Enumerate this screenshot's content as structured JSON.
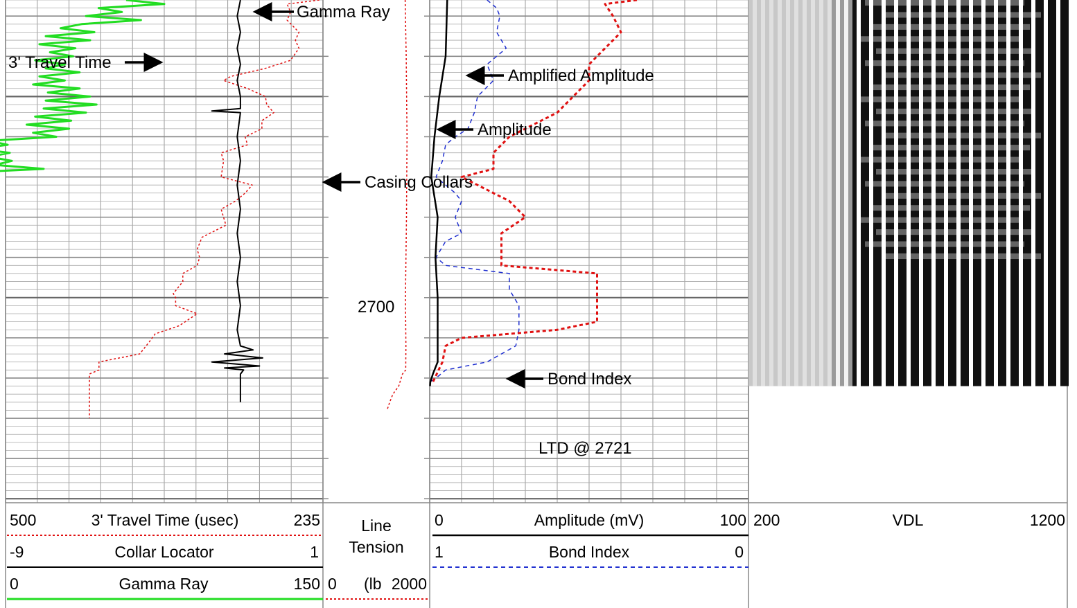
{
  "chart_data": {
    "type": "line",
    "title": "",
    "depth_range": [
      2626,
      2751
    ],
    "depth_labels": [
      {
        "depth": 2700,
        "text": "2700"
      }
    ],
    "remark": {
      "depth": 2721,
      "text": "LTD @ 2721"
    },
    "tracks": [
      {
        "id": "track1",
        "curves": [
          {
            "key": "tt",
            "name": "3' Travel Time (usec)",
            "min_label": "500",
            "max_label": "235",
            "range": [
              500,
              235
            ],
            "color": "#e01010",
            "dash": "3,3",
            "width": 1.5
          },
          {
            "key": "ccl",
            "name": "Collar Locator",
            "min_label": "-9",
            "max_label": "1",
            "range": [
              -9,
              1
            ],
            "color": "#000000",
            "dash": "",
            "width": 2
          },
          {
            "key": "gr",
            "name": "Gamma Ray",
            "min_label": "0",
            "max_label": "150",
            "range": [
              0,
              150
            ],
            "color": "#22dd22",
            "dash": "",
            "width": 3
          }
        ]
      },
      {
        "id": "depth",
        "curves": [
          {
            "key": "lt",
            "name": "Line Tension",
            "name_line1": "Line",
            "name_line2": "Tension",
            "unit": "(lb",
            "min_label": "0",
            "max_label": "2000",
            "range": [
              0,
              2000
            ],
            "color": "#e01010",
            "dash": "3,3",
            "width": 1.5
          }
        ]
      },
      {
        "id": "track2",
        "curves": [
          {
            "key": "amp",
            "name": "Amplitude (mV)",
            "min_label": "0",
            "max_label": "100",
            "range": [
              0,
              100
            ],
            "color": "#000000",
            "dash": "",
            "width": 2.5
          },
          {
            "key": "ampx",
            "name": "Amplified Amplitude",
            "range": [
              0,
              20
            ],
            "color": "#e01010",
            "dash": "5,4",
            "width": 3
          },
          {
            "key": "bi",
            "name": "Bond Index",
            "min_label": "1",
            "max_label": "0",
            "range": [
              1,
              0
            ],
            "color": "#2030d0",
            "dash": "6,5",
            "width": 1.5
          }
        ]
      },
      {
        "id": "track3",
        "curves": [
          {
            "key": "vdl",
            "name": "VDL",
            "min_label": "200",
            "max_label": "1200",
            "range": [
              200,
              1200
            ]
          }
        ]
      }
    ],
    "series": {
      "tt": [
        [
          2626,
          238
        ],
        [
          2627,
          265
        ],
        [
          2629,
          262
        ],
        [
          2631,
          265
        ],
        [
          2634,
          255
        ],
        [
          2636,
          258
        ],
        [
          2638,
          255
        ],
        [
          2641,
          262
        ],
        [
          2643,
          283
        ],
        [
          2645,
          312
        ],
        [
          2646,
          318
        ],
        [
          2648,
          298
        ],
        [
          2650,
          283
        ],
        [
          2652,
          282
        ],
        [
          2654,
          276
        ],
        [
          2656,
          286
        ],
        [
          2658,
          286
        ],
        [
          2660,
          300
        ],
        [
          2662,
          298
        ],
        [
          2664,
          320
        ],
        [
          2666,
          318
        ],
        [
          2670,
          320
        ],
        [
          2672,
          294
        ],
        [
          2674,
          300
        ],
        [
          2676,
          308
        ],
        [
          2678,
          320
        ],
        [
          2682,
          316
        ],
        [
          2685,
          336
        ],
        [
          2688,
          340
        ],
        [
          2690,
          338
        ],
        [
          2692,
          340
        ],
        [
          2694,
          352
        ],
        [
          2696,
          352
        ],
        [
          2699,
          360
        ],
        [
          2700,
          358
        ],
        [
          2702,
          358
        ],
        [
          2704,
          340
        ],
        [
          2707,
          355
        ],
        [
          2709,
          375
        ],
        [
          2711,
          380
        ],
        [
          2714,
          388
        ],
        [
          2716,
          422
        ],
        [
          2718,
          422
        ],
        [
          2719,
          430
        ],
        [
          2722,
          430
        ],
        [
          2724,
          430
        ],
        [
          2725,
          430
        ],
        [
          2726,
          430
        ],
        [
          2730,
          430
        ]
      ],
      "gr": [
        [
          2626,
          57
        ],
        [
          2627,
          75
        ],
        [
          2628,
          44
        ],
        [
          2629,
          55
        ],
        [
          2630,
          38
        ],
        [
          2631,
          64
        ],
        [
          2632,
          36
        ],
        [
          2633,
          26
        ],
        [
          2634,
          42
        ],
        [
          2635,
          19
        ],
        [
          2636,
          40
        ],
        [
          2637,
          16
        ],
        [
          2638,
          33
        ],
        [
          2639,
          21
        ],
        [
          2640,
          32
        ],
        [
          2641,
          14
        ],
        [
          2642,
          28
        ],
        [
          2643,
          19
        ],
        [
          2644,
          35
        ],
        [
          2645,
          16
        ],
        [
          2646,
          28
        ],
        [
          2647,
          13
        ],
        [
          2648,
          35
        ],
        [
          2649,
          20
        ],
        [
          2650,
          40
        ],
        [
          2651,
          19
        ],
        [
          2652,
          43
        ],
        [
          2653,
          18
        ],
        [
          2654,
          38
        ],
        [
          2655,
          14
        ],
        [
          2656,
          31
        ],
        [
          2657,
          10
        ],
        [
          2658,
          30
        ],
        [
          2659,
          13
        ],
        [
          2660,
          24
        ],
        [
          2661,
          -8
        ],
        [
          2662,
          1
        ],
        [
          2663,
          -14
        ],
        [
          2664,
          2
        ],
        [
          2665,
          -8
        ],
        [
          2666,
          3
        ],
        [
          2667,
          -5
        ],
        [
          2668,
          18
        ],
        [
          2669,
          -22
        ],
        [
          2670,
          -12
        ],
        [
          2671,
          -20
        ],
        [
          2672,
          -32
        ],
        [
          2673,
          -44
        ],
        [
          2674,
          -56
        ],
        [
          2675,
          -78
        ],
        [
          2676,
          -95
        ],
        [
          2677,
          -104
        ],
        [
          2678,
          -98
        ],
        [
          2679,
          -110
        ],
        [
          2680,
          -106
        ],
        [
          2681,
          -115
        ],
        [
          2682,
          -98
        ],
        [
          2683,
          -113
        ],
        [
          2684,
          -117
        ],
        [
          2685,
          -125
        ],
        [
          2686,
          -140
        ],
        [
          2687,
          -152
        ],
        [
          2688,
          -146
        ],
        [
          2689,
          -143
        ],
        [
          2690,
          -150
        ],
        [
          2691,
          -139
        ],
        [
          2692,
          -140
        ],
        [
          2693,
          -148
        ],
        [
          2694,
          -139
        ],
        [
          2695,
          -150
        ],
        [
          2696,
          -134
        ],
        [
          2697,
          -142
        ],
        [
          2698,
          -146
        ],
        [
          2699,
          -138
        ],
        [
          2700,
          -150
        ],
        [
          2701,
          -147
        ],
        [
          2702,
          -152
        ],
        [
          2703,
          -155
        ],
        [
          2704,
          -154
        ],
        [
          2705,
          -160
        ],
        [
          2706,
          -152
        ],
        [
          2707,
          -147
        ],
        [
          2708,
          -159
        ],
        [
          2709,
          -163
        ],
        [
          2710,
          -152
        ],
        [
          2711,
          -156
        ],
        [
          2712,
          -163
        ],
        [
          2713,
          -148
        ],
        [
          2714,
          -159
        ],
        [
          2715,
          -145
        ],
        [
          2716,
          -159
        ],
        [
          2717,
          -165
        ],
        [
          2718,
          -162
        ],
        [
          2719,
          -155
        ],
        [
          2720,
          -160
        ],
        [
          2721,
          -158
        ],
        [
          2722,
          -162
        ],
        [
          2723,
          -156
        ],
        [
          2724,
          -161
        ],
        [
          2725,
          -157
        ]
      ],
      "ccl": [
        [
          2626,
          -1.6
        ],
        [
          2630,
          -1.7
        ],
        [
          2634,
          -1.6
        ],
        [
          2638,
          -1.7
        ],
        [
          2642,
          -1.6
        ],
        [
          2646,
          -1.7
        ],
        [
          2650,
          -1.6
        ],
        [
          2653,
          -1.6
        ],
        [
          2653.6,
          -2.5
        ],
        [
          2654,
          -1.6
        ],
        [
          2660,
          -1.7
        ],
        [
          2666,
          -1.6
        ],
        [
          2672,
          -1.7
        ],
        [
          2678,
          -1.6
        ],
        [
          2684,
          -1.7
        ],
        [
          2690,
          -1.6
        ],
        [
          2696,
          -1.7
        ],
        [
          2702,
          -1.6
        ],
        [
          2708,
          -1.7
        ],
        [
          2712,
          -1.6
        ],
        [
          2713,
          -1.2
        ],
        [
          2714,
          -2.1
        ],
        [
          2715,
          -0.9
        ],
        [
          2716,
          -2.5
        ],
        [
          2717,
          -1.0
        ],
        [
          2717.5,
          -2.1
        ],
        [
          2718,
          -1.5
        ],
        [
          2719,
          -1.6
        ],
        [
          2722,
          -1.6
        ],
        [
          2726,
          -1.6
        ]
      ],
      "lt": [
        [
          2626,
          1540
        ],
        [
          2640,
          1560
        ],
        [
          2660,
          1575
        ],
        [
          2680,
          1565
        ],
        [
          2700,
          1545
        ],
        [
          2712,
          1555
        ],
        [
          2718,
          1550
        ],
        [
          2719,
          1490
        ],
        [
          2722,
          1420
        ],
        [
          2724,
          1310
        ],
        [
          2726,
          1250
        ],
        [
          2728,
          1200
        ]
      ],
      "amp": [
        [
          2626,
          5.5
        ],
        [
          2640,
          5.0
        ],
        [
          2650,
          3.0
        ],
        [
          2660,
          1.5
        ],
        [
          2670,
          0.5
        ],
        [
          2680,
          2.5
        ],
        [
          2690,
          1.8
        ],
        [
          2700,
          2.5
        ],
        [
          2710,
          2.5
        ],
        [
          2716,
          2.5
        ],
        [
          2719,
          1.0
        ],
        [
          2721,
          0.2
        ],
        [
          2722,
          0.1
        ]
      ],
      "ampx": [
        [
          2626,
          13
        ],
        [
          2627,
          11
        ],
        [
          2630,
          11.5
        ],
        [
          2634,
          12
        ],
        [
          2638,
          11
        ],
        [
          2642,
          10
        ],
        [
          2646,
          10
        ],
        [
          2650,
          9
        ],
        [
          2654,
          8
        ],
        [
          2656,
          7
        ],
        [
          2660,
          5
        ],
        [
          2664,
          4
        ],
        [
          2668,
          4
        ],
        [
          2670,
          2
        ],
        [
          2674,
          4
        ],
        [
          2676,
          5
        ],
        [
          2680,
          6
        ],
        [
          2684,
          4.5
        ],
        [
          2688,
          4.5
        ],
        [
          2692,
          4.5
        ],
        [
          2694,
          10.5
        ],
        [
          2698,
          10.5
        ],
        [
          2702,
          10.5
        ],
        [
          2706,
          10.5
        ],
        [
          2708,
          8
        ],
        [
          2710,
          2
        ],
        [
          2712,
          1
        ],
        [
          2716,
          0.8
        ],
        [
          2721,
          0.2
        ]
      ],
      "bi": [
        [
          2626,
          0.82
        ],
        [
          2628,
          0.79
        ],
        [
          2630,
          0.78
        ],
        [
          2634,
          0.79
        ],
        [
          2638,
          0.76
        ],
        [
          2640,
          0.79
        ],
        [
          2642,
          0.82
        ],
        [
          2646,
          0.8
        ],
        [
          2650,
          0.85
        ],
        [
          2654,
          0.86
        ],
        [
          2658,
          0.88
        ],
        [
          2660,
          0.92
        ],
        [
          2662,
          0.95
        ],
        [
          2666,
          0.96
        ],
        [
          2670,
          0.98
        ],
        [
          2674,
          0.92
        ],
        [
          2676,
          0.9
        ],
        [
          2680,
          0.92
        ],
        [
          2684,
          0.9
        ],
        [
          2686,
          0.95
        ],
        [
          2690,
          0.98
        ],
        [
          2692,
          0.95
        ],
        [
          2694,
          0.75
        ],
        [
          2698,
          0.75
        ],
        [
          2702,
          0.72
        ],
        [
          2708,
          0.72
        ],
        [
          2712,
          0.73
        ],
        [
          2716,
          0.82
        ],
        [
          2718,
          0.95
        ],
        [
          2720,
          0.98
        ],
        [
          2721,
          1.0
        ]
      ],
      "vdl_sample": [
        [
          2626,
          1
        ],
        [
          2722,
          1
        ]
      ]
    },
    "annotations": [
      {
        "text": "Gamma Ray",
        "curve": "gr"
      },
      {
        "text": "3' Travel Time",
        "curve": "tt"
      },
      {
        "text": "Casing Collars",
        "curve": "ccl"
      },
      {
        "text": "Amplified Amplitude",
        "curve": "ampx"
      },
      {
        "text": "Amplitude",
        "curve": "amp"
      },
      {
        "text": "Bond Index",
        "curve": "bi"
      }
    ]
  }
}
